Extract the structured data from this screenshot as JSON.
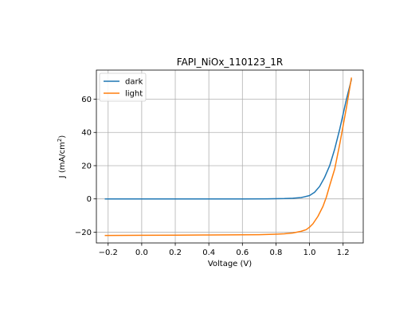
{
  "chart_data": {
    "type": "line",
    "title": "FAPI_NiOx_110123_1R",
    "xlabel": "Voltage (V)",
    "ylabel_main": "J (mA/cm",
    "ylabel_sup": "2",
    "ylabel_tail": ")",
    "xlim": [
      -0.27,
      1.32
    ],
    "ylim": [
      -26.5,
      77.5
    ],
    "xticks": [
      -0.2,
      0.0,
      0.2,
      0.4,
      0.6,
      0.8,
      1.0,
      1.2
    ],
    "xtick_labels": [
      "−0.2",
      "0.0",
      "0.2",
      "0.4",
      "0.6",
      "0.8",
      "1.0",
      "1.2"
    ],
    "yticks": [
      -20,
      0,
      20,
      40,
      60
    ],
    "ytick_labels": [
      "−20",
      "0",
      "20",
      "40",
      "60"
    ],
    "grid": true,
    "legend_position": "upper-left",
    "series": [
      {
        "name": "dark",
        "color": "#1f77b4",
        "x": [
          -0.22,
          0.0,
          0.2,
          0.4,
          0.6,
          0.75,
          0.85,
          0.9,
          0.95,
          1.0,
          1.03,
          1.06,
          1.09,
          1.12,
          1.15,
          1.18,
          1.2,
          1.22,
          1.25
        ],
        "y": [
          0.0,
          0.0,
          0.0,
          0.0,
          0.0,
          0.05,
          0.2,
          0.4,
          0.8,
          2.0,
          4.0,
          7.5,
          13.0,
          20.0,
          30.0,
          42.0,
          51.0,
          60.0,
          72.0
        ]
      },
      {
        "name": "light",
        "color": "#ff7f0e",
        "x": [
          -0.22,
          0.0,
          0.2,
          0.4,
          0.6,
          0.7,
          0.8,
          0.85,
          0.9,
          0.95,
          0.98,
          1.0,
          1.02,
          1.05,
          1.08,
          1.1,
          1.12,
          1.15,
          1.18,
          1.2,
          1.22,
          1.25
        ],
        "y": [
          -22.0,
          -21.9,
          -21.8,
          -21.7,
          -21.6,
          -21.5,
          -21.2,
          -21.0,
          -20.5,
          -19.5,
          -18.5,
          -17.0,
          -15.0,
          -10.5,
          -4.5,
          1.0,
          8.0,
          18.0,
          33.0,
          44.0,
          55.0,
          73.0
        ]
      }
    ]
  }
}
